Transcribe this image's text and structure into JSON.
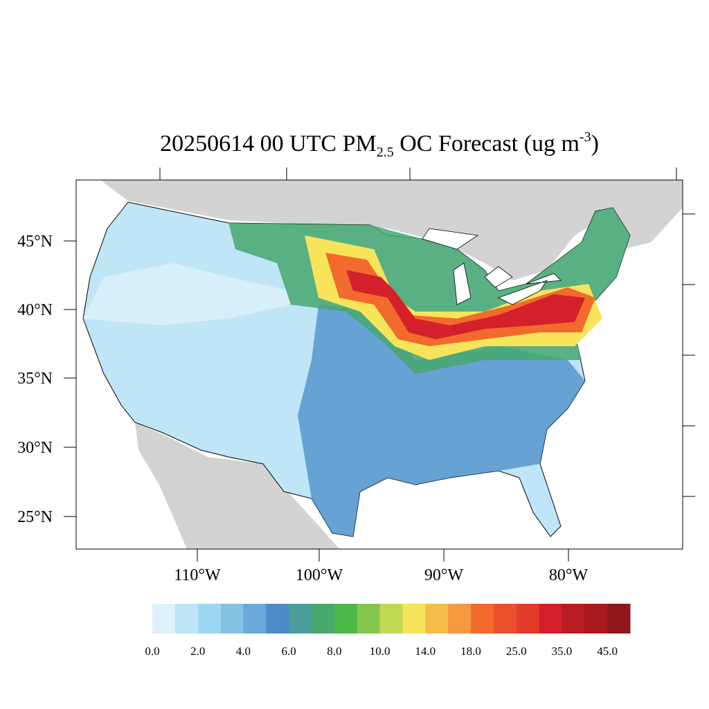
{
  "title": {
    "main": "20250614 00 UTC PM",
    "sub": "2.5",
    "middle": " OC Forecast (ug m",
    "sup": "-3",
    "end": ")"
  },
  "lat_labels": [
    "45°N",
    "40°N",
    "35°N",
    "30°N",
    "25°N"
  ],
  "lon_labels": [
    "110°W",
    "100°W",
    "90°W",
    "80°W"
  ],
  "colorbar": {
    "colors": [
      "#ddf1fa",
      "#bfe5f7",
      "#9dd8f2",
      "#86c1e6",
      "#69a8d9",
      "#4a8bc8",
      "#4a9e9e",
      "#47a86e",
      "#4cb848",
      "#84c64e",
      "#bfd955",
      "#f7e45a",
      "#f6bb4a",
      "#f69840",
      "#f26a2d",
      "#e9502b",
      "#e23b2a",
      "#d4202a",
      "#b91c22",
      "#a81a1f",
      "#8e171b"
    ],
    "labels": [
      "0.0",
      "2.0",
      "4.0",
      "6.0",
      "8.0",
      "10.0",
      "14.0",
      "18.0",
      "25.0",
      "35.0",
      "45.0"
    ]
  }
}
